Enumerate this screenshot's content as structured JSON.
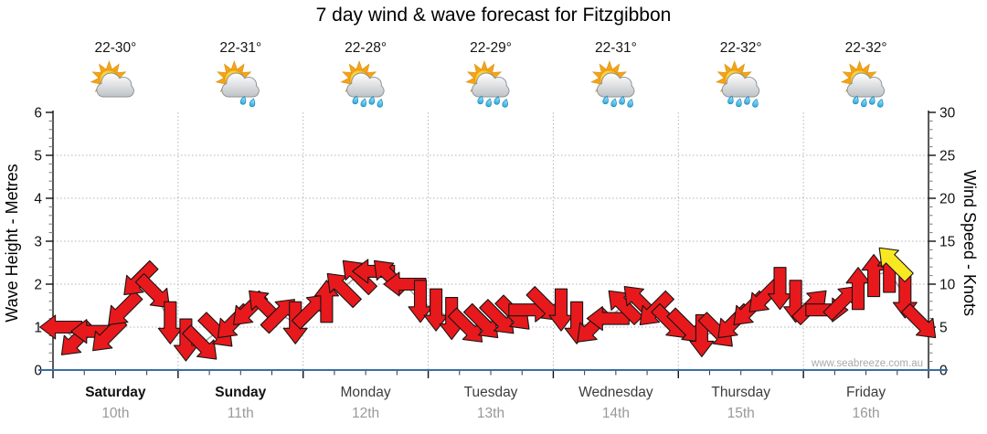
{
  "title": "7 day wind & wave forecast for Fitzgibbon",
  "watermark": "www.seabreeze.com.au",
  "axes": {
    "left": {
      "title": "Wave Height - Metres",
      "range": [
        0,
        6
      ],
      "major_ticks": [
        0,
        1,
        2,
        3,
        4,
        5,
        6
      ],
      "minor_step": 0.2
    },
    "right": {
      "title": "Wind Speed - Knots",
      "range": [
        0,
        30
      ],
      "major_ticks": [
        0,
        5,
        10,
        15,
        20,
        25,
        30
      ],
      "minor_step": 1
    }
  },
  "forecast_days": [
    {
      "name": "Saturday",
      "date": "10th",
      "temp": "22-30°",
      "icon": "partly-cloudy",
      "bold": true
    },
    {
      "name": "Sunday",
      "date": "11th",
      "temp": "22-31°",
      "icon": "partly-cloudy-light-rain",
      "bold": true
    },
    {
      "name": "Monday",
      "date": "12th",
      "temp": "22-28°",
      "icon": "partly-cloudy-rain",
      "bold": false
    },
    {
      "name": "Tuesday",
      "date": "13th",
      "temp": "22-29°",
      "icon": "partly-cloudy-rain",
      "bold": false
    },
    {
      "name": "Wednesday",
      "date": "14th",
      "temp": "22-31°",
      "icon": "partly-cloudy-rain",
      "bold": false
    },
    {
      "name": "Thursday",
      "date": "15th",
      "temp": "22-32°",
      "icon": "partly-cloudy-rain",
      "bold": false
    },
    {
      "name": "Friday",
      "date": "16th",
      "temp": "22-32°",
      "icon": "partly-cloudy-rain",
      "bold": false
    }
  ],
  "chart_data": {
    "type": "wind-arrow-series",
    "x_layout": "8 arrows per day, 3-hour intervals, 7 days",
    "ylim_wave_metres": [
      0,
      6
    ],
    "ylim_wind_knots": [
      0,
      30
    ],
    "grid": "dotted horizontal line each metre (1-5), dotted vertical line at each day boundary",
    "dir_deg_convention": "screen rotation clockwise: 0 = arrow points right, 90 = down, 180 = left, 270 = up",
    "series": [
      {
        "day": "Saturday",
        "knots": [
          5,
          3.5,
          4.5,
          4,
          7,
          10.5,
          9,
          5.5
        ],
        "dir_deg": [
          180,
          135,
          180,
          135,
          135,
          135,
          45,
          90
        ]
      },
      {
        "day": "Sunday",
        "knots": [
          3.5,
          3,
          4.5,
          5.5,
          7,
          7.5,
          6.5,
          5.5
        ],
        "dir_deg": [
          90,
          45,
          45,
          135,
          135,
          225,
          315,
          90
        ]
      },
      {
        "day": "Monday",
        "knots": [
          7,
          8,
          9.5,
          11,
          11.5,
          11,
          10,
          8
        ],
        "dir_deg": [
          315,
          270,
          225,
          225,
          180,
          225,
          180,
          90
        ]
      },
      {
        "day": "Tuesday",
        "knots": [
          7,
          6,
          5,
          5.5,
          6,
          6.5,
          7,
          7.5
        ],
        "dir_deg": [
          90,
          90,
          45,
          45,
          45,
          45,
          0,
          45
        ]
      },
      {
        "day": "Wednesday",
        "knots": [
          7,
          5.5,
          5,
          6,
          7.5,
          8,
          7,
          5.5
        ],
        "dir_deg": [
          90,
          90,
          135,
          180,
          225,
          225,
          135,
          45
        ]
      },
      {
        "day": "Thursday",
        "knots": [
          5,
          4,
          4.5,
          5.5,
          7,
          8.5,
          9.5,
          8
        ],
        "dir_deg": [
          45,
          90,
          45,
          135,
          135,
          135,
          90,
          90
        ]
      },
      {
        "day": "Friday",
        "knots": [
          7.5,
          7,
          8,
          9.5,
          11,
          11.5,
          8.5,
          5.5
        ],
        "dir_deg": [
          315,
          0,
          315,
          270,
          270,
          270,
          90,
          45
        ]
      }
    ],
    "highlight": {
      "day": "Friday",
      "day_index": 6,
      "slot": 5.3,
      "knots": 12.5,
      "dir_deg": 225,
      "color": "#f8e822",
      "meaning": "highlighted wind arrow"
    }
  },
  "colors": {
    "arrow_red": "#e8191c",
    "arrow_outline": "#151515",
    "highlight_yellow": "#f8e822",
    "baseline_blue": "#3a6ea5",
    "axis_black": "#111111",
    "grid_gray": "#b5b5b5",
    "connector_gray": "#9a9a9a",
    "weekday_gray": "#3c3c3c",
    "date_gray": "#999999",
    "watermark_gray": "#a9a9a9",
    "tick_label": "#111111",
    "temp_label": "#151515"
  }
}
